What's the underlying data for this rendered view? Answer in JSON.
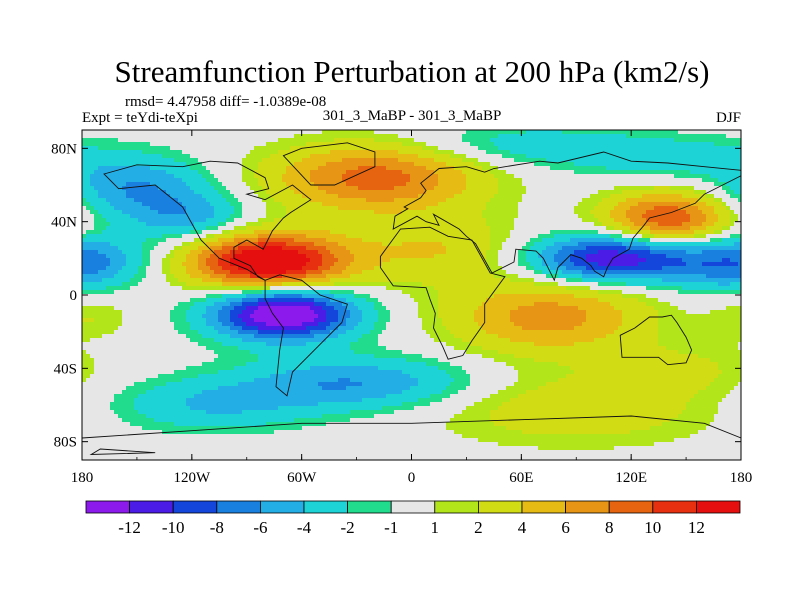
{
  "chart_data": {
    "type": "heatmap",
    "title": "Streamfunction Perturbation at 200 hPa (km2/s)",
    "stats": "rmsd= 4.47958 diff= -1.0389e-08",
    "left_label": "Expt = teYdi-teXpi",
    "center_label": "301_3_MaBP - 301_3_MaBP",
    "right_label": "DJF",
    "xlim": [
      -180,
      180
    ],
    "ylim": [
      -90,
      90
    ],
    "x_ticks": [
      {
        "value": -180,
        "label": "180"
      },
      {
        "value": -120,
        "label": "120W"
      },
      {
        "value": -60,
        "label": "60W"
      },
      {
        "value": 0,
        "label": "0"
      },
      {
        "value": 60,
        "label": "60E"
      },
      {
        "value": 120,
        "label": "120E"
      },
      {
        "value": 180,
        "label": "180"
      }
    ],
    "y_ticks": [
      {
        "value": 80,
        "label": "80N"
      },
      {
        "value": 40,
        "label": "40N"
      },
      {
        "value": 0,
        "label": "0"
      },
      {
        "value": -40,
        "label": "40S"
      },
      {
        "value": -80,
        "label": "80S"
      }
    ],
    "colorbar_labels": [
      "-12",
      "-10",
      "-8",
      "-6",
      "-4",
      "-2",
      "-1",
      "1",
      "2",
      "4",
      "6",
      "8",
      "10",
      "12"
    ],
    "colorbar_colors": [
      "#8c1aec",
      "#4b1ce6",
      "#1446dc",
      "#1a80e0",
      "#24aee6",
      "#1dd3d6",
      "#22dc8e",
      "#e6e6e6",
      "#b2e61a",
      "#d2dc14",
      "#e6bb14",
      "#e69614",
      "#e6640f",
      "#e6300f",
      "#e60f0f"
    ],
    "field_features": [
      {
        "lon": -78,
        "lat": 18,
        "amp": 15.5,
        "slon": 30,
        "slat": 11
      },
      {
        "lon": -70,
        "lat": -10,
        "amp": -15.5,
        "slon": 27,
        "slat": 10
      },
      {
        "lon": -20,
        "lat": 64,
        "amp": 9,
        "slon": 40,
        "slat": 13
      },
      {
        "lon": 140,
        "lat": 42,
        "amp": 10,
        "slon": 24,
        "slat": 10
      },
      {
        "lon": 110,
        "lat": 20,
        "amp": -12,
        "slon": 32,
        "slat": 9
      },
      {
        "lon": 75,
        "lat": -12,
        "amp": 7,
        "slon": 38,
        "slat": 14
      },
      {
        "lon": 15,
        "lat": 25,
        "amp": 4,
        "slon": 34,
        "slat": 13
      },
      {
        "lon": -150,
        "lat": 58,
        "amp": -6,
        "slon": 28,
        "slat": 12
      },
      {
        "lon": -170,
        "lat": 20,
        "amp": -4,
        "slon": 22,
        "slat": 10
      },
      {
        "lon": -120,
        "lat": 42,
        "amp": -4.5,
        "slon": 22,
        "slat": 9
      },
      {
        "lon": 170,
        "lat": 15,
        "amp": -4,
        "slon": 22,
        "slat": 10
      },
      {
        "lon": 60,
        "lat": 82,
        "amp": -3,
        "slon": 45,
        "slat": 8
      },
      {
        "lon": 140,
        "lat": 75,
        "amp": -3,
        "slon": 40,
        "slat": 8
      },
      {
        "lon": -30,
        "lat": -48,
        "amp": -6,
        "slon": 45,
        "slat": 10
      },
      {
        "lon": -110,
        "lat": -60,
        "amp": -4,
        "slon": 40,
        "slat": 10
      },
      {
        "lon": 90,
        "lat": -62,
        "amp": 3.5,
        "slon": 55,
        "slat": 14
      },
      {
        "lon": 150,
        "lat": -40,
        "amp": 2,
        "slon": 30,
        "slat": 10
      },
      {
        "lon": -175,
        "lat": -12,
        "amp": 2,
        "slon": 16,
        "slat": 8
      }
    ],
    "continents": [
      [
        [
          -168,
          66
        ],
        [
          -150,
          71
        ],
        [
          -125,
          70
        ],
        [
          -110,
          73
        ],
        [
          -95,
          72
        ],
        [
          -80,
          64
        ],
        [
          -78,
          58
        ],
        [
          -90,
          55
        ],
        [
          -80,
          52
        ],
        [
          -65,
          60
        ],
        [
          -55,
          52
        ],
        [
          -66,
          45
        ],
        [
          -70,
          42
        ],
        [
          -76,
          35
        ],
        [
          -81,
          25
        ],
        [
          -90,
          30
        ],
        [
          -97,
          26
        ],
        [
          -97,
          20
        ],
        [
          -88,
          16
        ],
        [
          -84,
          10
        ],
        [
          -80,
          8
        ],
        [
          -90,
          14
        ],
        [
          -105,
          20
        ],
        [
          -115,
          30
        ],
        [
          -125,
          48
        ],
        [
          -140,
          60
        ],
        [
          -160,
          58
        ],
        [
          -168,
          66
        ]
      ],
      [
        [
          -80,
          8
        ],
        [
          -72,
          11
        ],
        [
          -60,
          8
        ],
        [
          -50,
          0
        ],
        [
          -35,
          -5
        ],
        [
          -38,
          -15
        ],
        [
          -48,
          -25
        ],
        [
          -58,
          -35
        ],
        [
          -65,
          -42
        ],
        [
          -68,
          -55
        ],
        [
          -74,
          -50
        ],
        [
          -72,
          -30
        ],
        [
          -70,
          -18
        ],
        [
          -76,
          -10
        ],
        [
          -80,
          -2
        ],
        [
          -80,
          8
        ]
      ],
      [
        [
          -55,
          60
        ],
        [
          -42,
          60
        ],
        [
          -20,
          70
        ],
        [
          -20,
          78
        ],
        [
          -35,
          83
        ],
        [
          -60,
          80
        ],
        [
          -70,
          76
        ],
        [
          -55,
          60
        ]
      ],
      [
        [
          -17,
          15
        ],
        [
          -10,
          5
        ],
        [
          8,
          4
        ],
        [
          10,
          -2
        ],
        [
          13,
          -10
        ],
        [
          12,
          -18
        ],
        [
          17,
          -28
        ],
        [
          20,
          -35
        ],
        [
          28,
          -33
        ],
        [
          33,
          -25
        ],
        [
          40,
          -15
        ],
        [
          40,
          -5
        ],
        [
          51,
          10
        ],
        [
          43,
          12
        ],
        [
          33,
          30
        ],
        [
          20,
          32
        ],
        [
          10,
          37
        ],
        [
          -6,
          36
        ],
        [
          -17,
          21
        ],
        [
          -17,
          15
        ]
      ],
      [
        [
          -10,
          36
        ],
        [
          -9,
          43
        ],
        [
          -2,
          47
        ],
        [
          -4,
          48
        ],
        [
          5,
          53
        ],
        [
          8,
          57
        ],
        [
          5,
          61
        ],
        [
          15,
          69
        ],
        [
          30,
          70
        ],
        [
          40,
          67
        ],
        [
          45,
          69
        ],
        [
          70,
          73
        ],
        [
          80,
          72
        ],
        [
          105,
          78
        ],
        [
          120,
          73
        ],
        [
          140,
          72
        ],
        [
          160,
          70
        ],
        [
          180,
          68
        ],
        [
          180,
          65
        ],
        [
          170,
          60
        ],
        [
          160,
          55
        ],
        [
          155,
          50
        ],
        [
          142,
          45
        ],
        [
          130,
          42
        ],
        [
          127,
          38
        ],
        [
          121,
          31
        ],
        [
          119,
          25
        ],
        [
          110,
          20
        ],
        [
          107,
          15
        ],
        [
          105,
          10
        ],
        [
          100,
          13
        ],
        [
          98,
          16
        ],
        [
          93,
          20
        ],
        [
          87,
          22
        ],
        [
          80,
          15
        ],
        [
          78,
          8
        ],
        [
          72,
          20
        ],
        [
          68,
          24
        ],
        [
          57,
          25
        ],
        [
          56,
          18
        ],
        [
          44,
          12
        ],
        [
          35,
          28
        ],
        [
          30,
          32
        ],
        [
          26,
          36
        ],
        [
          12,
          44
        ],
        [
          15,
          38
        ],
        [
          8,
          40
        ],
        [
          3,
          43
        ],
        [
          -10,
          36
        ]
      ],
      [
        [
          114,
          -22
        ],
        [
          122,
          -18
        ],
        [
          130,
          -12
        ],
        [
          137,
          -12
        ],
        [
          142,
          -11
        ],
        [
          145,
          -15
        ],
        [
          150,
          -23
        ],
        [
          153,
          -30
        ],
        [
          150,
          -37
        ],
        [
          140,
          -38
        ],
        [
          135,
          -34
        ],
        [
          125,
          -34
        ],
        [
          115,
          -34
        ],
        [
          114,
          -22
        ]
      ],
      [
        [
          -180,
          -78
        ],
        [
          -120,
          -74
        ],
        [
          -60,
          -70
        ],
        [
          0,
          -70
        ],
        [
          60,
          -68
        ],
        [
          120,
          -66
        ],
        [
          160,
          -70
        ],
        [
          180,
          -78
        ],
        [
          180,
          -90
        ],
        [
          -180,
          -90
        ],
        [
          -180,
          -78
        ]
      ],
      [
        [
          -170,
          -84
        ],
        [
          -140,
          -86
        ],
        [
          -175,
          -87
        ],
        [
          -170,
          -84
        ]
      ]
    ]
  }
}
